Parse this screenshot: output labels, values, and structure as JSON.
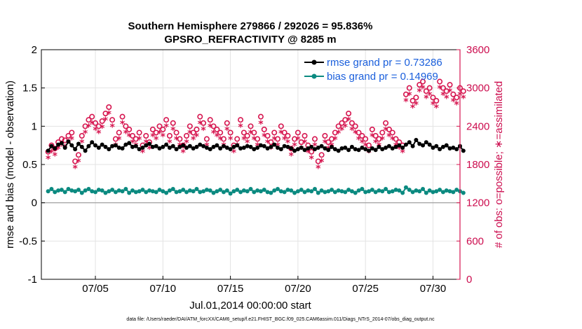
{
  "chart_data": {
    "type": "line",
    "title": "Southern Hemisphere 279866 / 292026 = 95.836%",
    "subtitle": "GPSRO_REFRACTIVITY @ 8285 m",
    "xlabel": "Jul.01,2014 00:00:00 start",
    "ylabel": "rmse and bias (model - observation)",
    "y2label": "# of obs: o=possible; ∗=assimilated",
    "ylim": [
      -1,
      2
    ],
    "y2lim": [
      0,
      3600
    ],
    "xlim": [
      1.0,
      32.0
    ],
    "yticks": [
      "-1",
      "-0.5",
      "0",
      "0.5",
      "1",
      "1.5",
      "2"
    ],
    "y2ticks": [
      "0",
      "600",
      "1200",
      "1800",
      "2400",
      "3000",
      "3600"
    ],
    "xticks": [
      {
        "x": 5,
        "label": "07/05"
      },
      {
        "x": 10,
        "label": "07/10"
      },
      {
        "x": 15,
        "label": "07/15"
      },
      {
        "x": 20,
        "label": "07/20"
      },
      {
        "x": 25,
        "label": "07/25"
      },
      {
        "x": 30,
        "label": "07/30"
      }
    ],
    "grid": true,
    "legend_position": "top-right",
    "legend": [
      "rmse grand pr = 0.73286",
      "bias grand pr = 0.14969"
    ],
    "colors": {
      "rmse": "#000000",
      "bias": "#0b8a80",
      "obs": "#d6154f",
      "zero_line": "#9a9a9a"
    },
    "day_starts": [
      1.5,
      2.5,
      3.5,
      4.5,
      5.5,
      6.5,
      7.5,
      8.5,
      9.5,
      10.5,
      11.5,
      12.5,
      13.5,
      14.5,
      15.5,
      16.5,
      17.5,
      18.5,
      19.5,
      20.5,
      21.5,
      22.5,
      23.5,
      24.5,
      25.5,
      26.5,
      27.5,
      28.5,
      29.5,
      30.5,
      31.5
    ],
    "samples_per_day": 4,
    "series": [
      {
        "name": "rmse",
        "axis": "left",
        "values": [
          0.68,
          0.74,
          0.71,
          0.76,
          0.78,
          0.72,
          0.8,
          0.75,
          0.7,
          0.77,
          0.73,
          0.68,
          0.74,
          0.79,
          0.75,
          0.72,
          0.76,
          0.73,
          0.7,
          0.74,
          0.75,
          0.72,
          0.71,
          0.76,
          0.78,
          0.73,
          0.74,
          0.7,
          0.72,
          0.75,
          0.77,
          0.73,
          0.74,
          0.71,
          0.73,
          0.76,
          0.72,
          0.74,
          0.7,
          0.73,
          0.75,
          0.72,
          0.74,
          0.71,
          0.73,
          0.76,
          0.74,
          0.72,
          0.7,
          0.73,
          0.75,
          0.71,
          0.74,
          0.72,
          0.7,
          0.73,
          0.75,
          0.71,
          0.72,
          0.74,
          0.73,
          0.7,
          0.72,
          0.75,
          0.74,
          0.71,
          0.73,
          0.76,
          0.72,
          0.7,
          0.74,
          0.73,
          0.71,
          0.68,
          0.7,
          0.72,
          0.69,
          0.71,
          0.73,
          0.7,
          0.72,
          0.74,
          0.71,
          0.69,
          0.73,
          0.7,
          0.68,
          0.71,
          0.72,
          0.69,
          0.73,
          0.7,
          0.69,
          0.72,
          0.7,
          0.68,
          0.71,
          0.69,
          0.73,
          0.7,
          0.72,
          0.74,
          0.71,
          0.73,
          0.75,
          0.72,
          0.76,
          0.79,
          0.74,
          0.82,
          0.77,
          0.75,
          0.79,
          0.76,
          0.72,
          0.74,
          0.7,
          0.73,
          0.75,
          0.71,
          0.72,
          0.7,
          0.74,
          0.68
        ]
      },
      {
        "name": "bias",
        "axis": "left",
        "values": [
          0.15,
          0.18,
          0.14,
          0.16,
          0.17,
          0.14,
          0.18,
          0.16,
          0.15,
          0.17,
          0.13,
          0.16,
          0.18,
          0.15,
          0.14,
          0.17,
          0.16,
          0.13,
          0.15,
          0.17,
          0.14,
          0.16,
          0.15,
          0.18,
          0.13,
          0.16,
          0.14,
          0.15,
          0.17,
          0.14,
          0.16,
          0.15,
          0.14,
          0.17,
          0.15,
          0.13,
          0.16,
          0.18,
          0.14,
          0.15,
          0.17,
          0.14,
          0.16,
          0.15,
          0.18,
          0.14,
          0.15,
          0.17,
          0.16,
          0.13,
          0.15,
          0.17,
          0.14,
          0.16,
          0.12,
          0.15,
          0.17,
          0.14,
          0.16,
          0.15,
          0.18,
          0.14,
          0.16,
          0.15,
          0.17,
          0.14,
          0.13,
          0.16,
          0.18,
          0.15,
          0.14,
          0.17,
          0.16,
          0.13,
          0.15,
          0.17,
          0.14,
          0.16,
          0.15,
          0.18,
          0.13,
          0.16,
          0.14,
          0.15,
          0.17,
          0.14,
          0.16,
          0.15,
          0.14,
          0.17,
          0.15,
          0.13,
          0.16,
          0.18,
          0.14,
          0.15,
          0.17,
          0.14,
          0.16,
          0.15,
          0.18,
          0.14,
          0.15,
          0.17,
          0.16,
          0.13,
          0.2,
          0.17,
          0.14,
          0.16,
          0.15,
          0.18,
          0.13,
          0.16,
          0.14,
          0.15,
          0.17,
          0.14,
          0.16,
          0.15,
          0.14,
          0.17,
          0.15,
          0.13
        ]
      },
      {
        "name": "obs possible (o)",
        "axis": "right",
        "values": [
          2000,
          2100,
          2050,
          2150,
          2200,
          2180,
          2250,
          2300,
          1850,
          1950,
          2250,
          2400,
          2500,
          2550,
          2450,
          2400,
          2480,
          2600,
          2700,
          2500,
          2200,
          2300,
          2550,
          2400,
          2350,
          2250,
          2200,
          2300,
          2100,
          2250,
          2150,
          2350,
          2300,
          2400,
          2350,
          2500,
          2250,
          2450,
          2300,
          2200,
          2100,
          2250,
          2400,
          2300,
          2350,
          2550,
          2450,
          2200,
          2500,
          2400,
          2350,
          2300,
          2200,
          2450,
          2300,
          2100,
          2200,
          2500,
          2300,
          2250,
          2400,
          2300,
          2200,
          2550,
          2350,
          2250,
          2150,
          2300,
          2200,
          2400,
          2300,
          2250,
          2050,
          2200,
          2300,
          2150,
          2250,
          2100,
          2000,
          2200,
          1850,
          1950,
          2250,
          2150,
          2200,
          2300,
          2400,
          2450,
          2500,
          2600,
          2450,
          2400,
          2300,
          2250,
          2200,
          2100,
          2350,
          2250,
          2200,
          2300,
          2450,
          2350,
          2300,
          2200,
          2150,
          2100,
          2900,
          3000,
          2800,
          2850,
          3050,
          3100,
          2950,
          3000,
          2850,
          2800,
          3100,
          3000,
          2950,
          3050,
          2900,
          2850,
          3000,
          2950
        ]
      },
      {
        "name": "obs assimilated (*)",
        "axis": "right",
        "values": [
          1900,
          2000,
          1950,
          2050,
          2100,
          2080,
          2150,
          2200,
          1750,
          1850,
          2150,
          2300,
          2400,
          2450,
          2350,
          2300,
          2380,
          2500,
          2600,
          2400,
          2100,
          2200,
          2450,
          2300,
          2250,
          2150,
          2100,
          2200,
          2000,
          2150,
          2050,
          2250,
          2200,
          2300,
          2250,
          2400,
          2150,
          2350,
          2200,
          2100,
          2000,
          2150,
          2300,
          2200,
          2250,
          2450,
          2350,
          2100,
          2400,
          2300,
          2250,
          2200,
          2100,
          2350,
          2200,
          2000,
          2100,
          2400,
          2200,
          2150,
          2300,
          2200,
          2100,
          2450,
          2250,
          2150,
          2050,
          2200,
          2100,
          2300,
          2200,
          2150,
          1950,
          2100,
          2200,
          2050,
          2150,
          2000,
          1900,
          2100,
          1750,
          1850,
          2150,
          2050,
          2100,
          2200,
          2300,
          2350,
          2400,
          2500,
          2350,
          2300,
          2200,
          2150,
          2100,
          2000,
          2250,
          2150,
          2100,
          2200,
          2350,
          2250,
          2200,
          2100,
          2050,
          2000,
          2800,
          2900,
          2700,
          2750,
          2950,
          3000,
          2850,
          2900,
          2750,
          2700,
          3000,
          2900,
          2850,
          2950,
          2800,
          2750,
          2900,
          2850
        ]
      }
    ]
  },
  "footer": "data file: /Users/raeder/DAI/ATM_forcXX/CAM6_setup/f.e21.FHIST_BGC.f09_025.CAM6assim.011/Diags_NTrS_2014-07/obs_diag_output.nc"
}
